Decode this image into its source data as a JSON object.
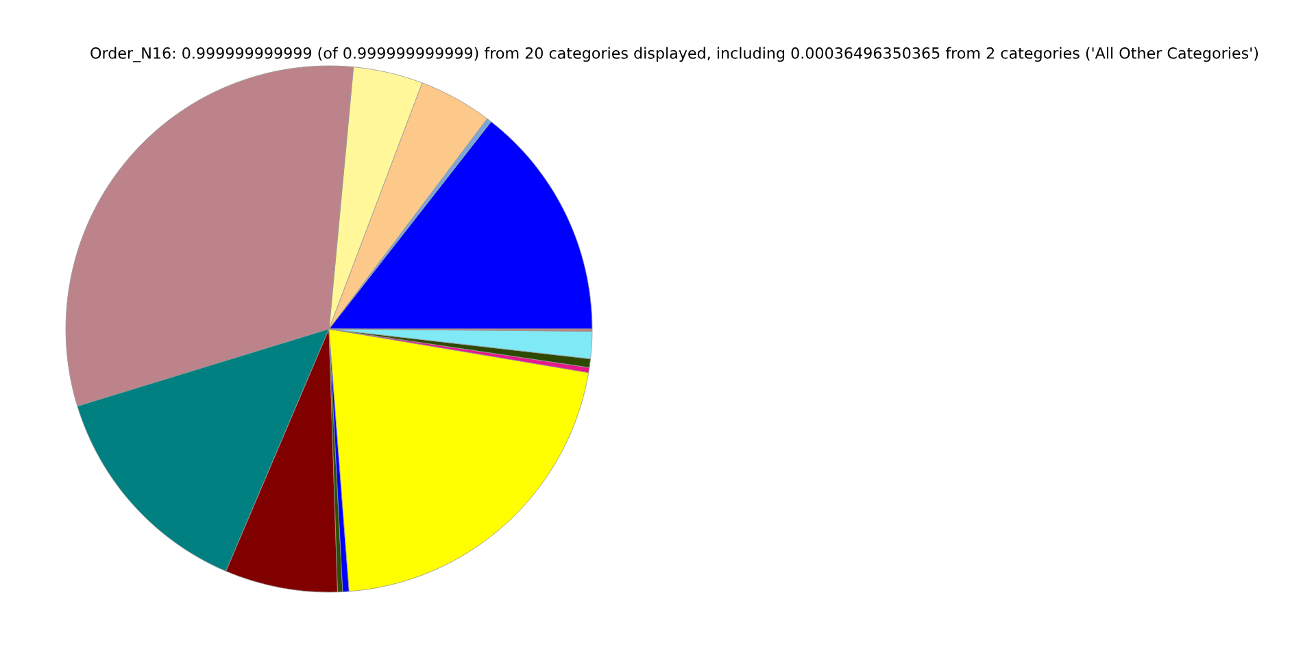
{
  "chart_data": {
    "type": "pie",
    "title": "Order_N16: 0.999999999999 (of 0.999999999999) from 20 categories displayed, including 0.00036496350365 from 2 categories ('All Other Categories')",
    "categories": [
      null,
      null,
      null,
      null,
      null,
      null,
      null,
      null,
      null,
      null,
      null,
      null,
      null,
      null
    ],
    "values": [
      14.44,
      0.3,
      4.5,
      4.28,
      31.22,
      13.86,
      6.92,
      0.31,
      0.39,
      21.13,
      0.31,
      0.53,
      1.67,
      0.14
    ],
    "colors": [
      "#0000ff",
      "#7ba7d8",
      "#fdc98b",
      "#fff79a",
      "#bc838b",
      "#008080",
      "#800000",
      "#2f4f00",
      "#0000ff",
      "#ffff00",
      "#e6198c",
      "#2e4a00",
      "#7fe9f5",
      "#c08080"
    ],
    "legend": false
  }
}
